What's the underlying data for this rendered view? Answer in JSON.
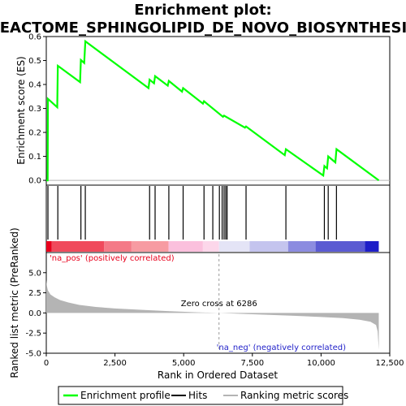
{
  "chart_data": [
    {
      "type": "line",
      "panel": "enrichment",
      "title_line1": "Enrichment plot:",
      "title_line2": "REACTOME_SPHINGOLIPID_DE_NOVO_BIOSYNTHESIS",
      "ylabel": "Enrichment score (ES)",
      "ylim": [
        -0.02,
        0.6
      ],
      "xlim": [
        0,
        12500
      ],
      "yticks": [
        "0.0",
        "0.1",
        "0.2",
        "0.3",
        "0.4",
        "0.5",
        "0.6"
      ],
      "ytick_values": [
        0.0,
        0.1,
        0.2,
        0.3,
        0.4,
        0.5,
        0.6
      ],
      "color": "#00ff00",
      "series": [
        {
          "x": [
            0,
            50,
            60,
            400,
            420,
            1230,
            1260,
            1380,
            1420,
            3720,
            3760,
            3920,
            3960,
            4420,
            4460,
            4940,
            4980,
            5700,
            5740,
            6430,
            6470,
            7230,
            7270,
            8680,
            8720,
            10080,
            10120,
            10220,
            10260,
            10520,
            10560,
            12100
          ],
          "values": [
            0.0,
            0.0,
            0.34,
            0.305,
            0.478,
            0.41,
            0.502,
            0.49,
            0.58,
            0.385,
            0.42,
            0.405,
            0.435,
            0.395,
            0.415,
            0.37,
            0.385,
            0.32,
            0.33,
            0.265,
            0.27,
            0.22,
            0.225,
            0.105,
            0.13,
            0.02,
            0.06,
            0.05,
            0.1,
            0.075,
            0.13,
            0.0
          ]
        }
      ]
    },
    {
      "type": "bar",
      "panel": "hits",
      "hit_positions": [
        60,
        420,
        1260,
        1420,
        3760,
        3960,
        4460,
        4980,
        5740,
        6060,
        6300,
        6400,
        6470,
        6530,
        6580,
        7270,
        8720,
        10120,
        10260,
        10560
      ]
    },
    {
      "type": "heatmap",
      "panel": "rank_colorbar",
      "segments": [
        {
          "from": 0,
          "to": 200,
          "color": "#e8001c"
        },
        {
          "from": 200,
          "to": 2100,
          "color": "#f04a5c"
        },
        {
          "from": 2100,
          "to": 3100,
          "color": "#f47a87"
        },
        {
          "from": 3100,
          "to": 4450,
          "color": "#f79ba2"
        },
        {
          "from": 4450,
          "to": 5700,
          "color": "#fbc0dd"
        },
        {
          "from": 5700,
          "to": 6286,
          "color": "#fcd7ea"
        },
        {
          "from": 6286,
          "to": 7400,
          "color": "#e4e4f6"
        },
        {
          "from": 7400,
          "to": 8800,
          "color": "#c4c4ee"
        },
        {
          "from": 8800,
          "to": 9800,
          "color": "#8c8ce0"
        },
        {
          "from": 9800,
          "to": 11600,
          "color": "#5a5ad2"
        },
        {
          "from": 11600,
          "to": 12100,
          "color": "#1e1ec8"
        }
      ]
    },
    {
      "type": "area",
      "panel": "ranked_metric",
      "xlabel": "Rank in Ordered Dataset",
      "ylabel": "Ranked list metric (PreRanked)",
      "ylim": [
        -5.0,
        7.5
      ],
      "xlim": [
        0,
        12500
      ],
      "yticks": [
        "-5.0",
        "-2.5",
        "0.0",
        "2.5",
        "5.0"
      ],
      "ytick_values": [
        -5.0,
        -2.5,
        0.0,
        2.5,
        5.0
      ],
      "xticks": [
        "0",
        "2,500",
        "5,000",
        "7,500",
        "10,000",
        "12,500"
      ],
      "xtick_values": [
        0,
        2500,
        5000,
        7500,
        10000,
        12500
      ],
      "color": "#b4b4b4",
      "x": [
        0,
        20,
        60,
        150,
        300,
        500,
        800,
        1200,
        1800,
        2500,
        3500,
        4500,
        5500,
        6286,
        7000,
        8000,
        9000,
        10000,
        10800,
        11400,
        11800,
        12000,
        12060,
        12100
      ],
      "values": [
        4.1,
        3.4,
        2.8,
        2.3,
        1.95,
        1.6,
        1.3,
        1.0,
        0.75,
        0.55,
        0.38,
        0.22,
        0.08,
        0.0,
        -0.1,
        -0.22,
        -0.35,
        -0.5,
        -0.65,
        -0.85,
        -1.1,
        -1.5,
        -2.3,
        -4.6
      ],
      "zero_cross_label": "Zero cross at 6286",
      "zero_cross": 6286,
      "pos_label": "'na_pos' (positively correlated)",
      "neg_label": "'na_neg' (negatively correlated)"
    }
  ],
  "legend": {
    "items": [
      {
        "label": "Enrichment profile",
        "color": "#00ff00"
      },
      {
        "label": "Hits",
        "color": "#000000"
      },
      {
        "label": "Ranking metric scores",
        "color": "#b4b4b4"
      }
    ]
  }
}
